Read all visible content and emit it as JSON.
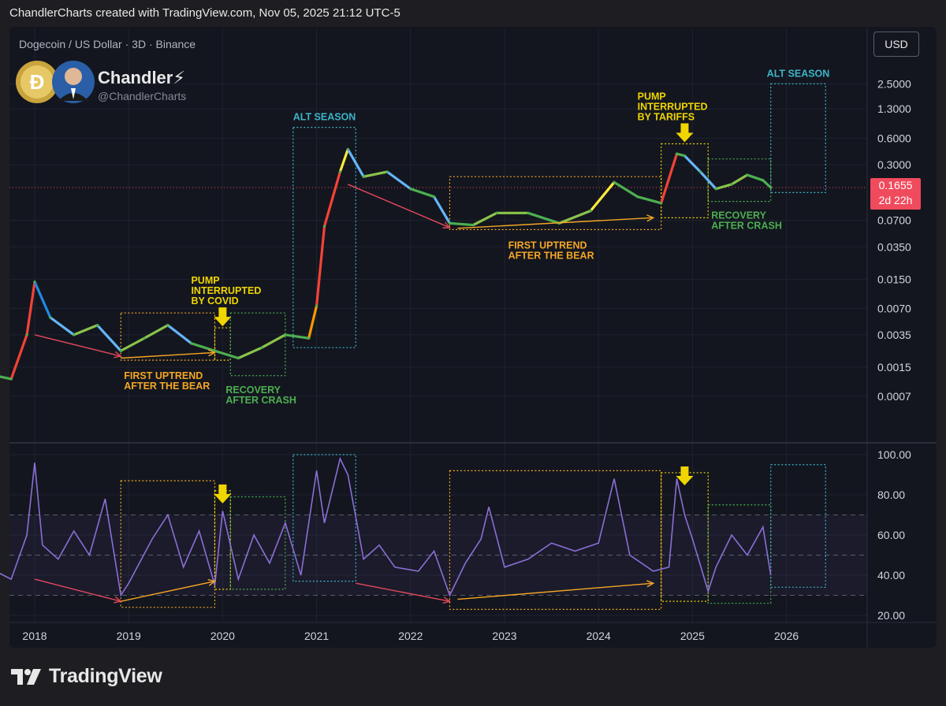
{
  "header": {
    "caption": "ChandlerCharts created with TradingView.com, Nov 05, 2025 21:12 UTC-5",
    "symbol": "Dogecoin / US Dollar · 3D · Binance",
    "author_name": "Chandler⚡",
    "author_handle": "@ChandlerCharts",
    "currency_button": "USD",
    "current_price": "0.1655",
    "countdown": "2d 22h"
  },
  "footer": {
    "brand": "TradingView"
  },
  "colors": {
    "background": "#13161f",
    "price_line": "#f04a5d",
    "rsi_line": "#8b6fd6",
    "alt_season": "#3cb4c8",
    "uptrend": "#f5a623",
    "pump": "#f0d500",
    "recovery": "#4caf50",
    "downtrend": "#e5485c"
  },
  "chart_data": [
    {
      "type": "line",
      "panel": "price",
      "scale": "log",
      "x_axis_labels": [
        "2018",
        "2019",
        "2020",
        "2021",
        "2022",
        "2023",
        "2024",
        "2025",
        "2026"
      ],
      "y_axis_labels": [
        "2.5000",
        "1.3000",
        "0.6000",
        "0.3000",
        "0.0700",
        "0.0350",
        "0.0150",
        "0.0070",
        "0.0035",
        "0.0015",
        "0.0007"
      ],
      "series": [
        {
          "x": [
            "2017-08",
            "2017-10",
            "2017-12",
            "2018-01",
            "2018-03",
            "2018-06",
            "2018-09",
            "2018-12",
            "2019-03",
            "2019-06",
            "2019-09",
            "2019-12",
            "2020-03",
            "2020-06",
            "2020-09",
            "2020-12",
            "2021-01",
            "2021-02",
            "2021-04",
            "2021-05",
            "2021-07",
            "2021-10",
            "2022-01",
            "2022-04",
            "2022-06",
            "2022-09",
            "2022-12",
            "2023-04",
            "2023-08",
            "2023-12",
            "2024-03",
            "2024-06",
            "2024-09",
            "2024-11",
            "2024-12",
            "2025-02",
            "2025-04",
            "2025-06",
            "2025-08",
            "2025-10",
            "2025-11"
          ],
          "values": [
            0.0012,
            0.0011,
            0.0035,
            0.014,
            0.0055,
            0.0035,
            0.0045,
            0.0023,
            0.0032,
            0.0045,
            0.0028,
            0.0023,
            0.0019,
            0.0025,
            0.0035,
            0.0032,
            0.0075,
            0.06,
            0.25,
            0.45,
            0.22,
            0.25,
            0.16,
            0.13,
            0.065,
            0.062,
            0.085,
            0.085,
            0.065,
            0.09,
            0.19,
            0.13,
            0.11,
            0.4,
            0.38,
            0.25,
            0.16,
            0.18,
            0.23,
            0.2,
            0.1655
          ]
        }
      ],
      "annotations": [
        {
          "label": "ALT SEASON",
          "kind": "alt_season",
          "x_start": "2020-10",
          "x_end": "2021-06",
          "y_low": 0.0025,
          "y_high": 0.8
        },
        {
          "label": "ALT SEASON",
          "kind": "alt_season",
          "x_start": "2025-11",
          "x_end": "2026-06",
          "y_low": 0.145,
          "y_high": 2.5
        },
        {
          "label": "FIRST UPTREND\nAFTER THE BEAR",
          "kind": "uptrend",
          "x_start": "2018-12",
          "x_end": "2019-12",
          "y_low": 0.0018,
          "y_high": 0.0062,
          "arrow": {
            "from": [
              "2018-12",
              0.0019
            ],
            "to": [
              "2019-12",
              0.0022
            ]
          }
        },
        {
          "label": "FIRST UPTREND\nAFTER THE BEAR",
          "kind": "uptrend",
          "x_start": "2022-06",
          "x_end": "2024-09",
          "y_low": 0.055,
          "y_high": 0.22,
          "arrow": {
            "from": [
              "2022-07",
              0.057
            ],
            "to": [
              "2024-08",
              0.075
            ]
          }
        },
        {
          "label": "PUMP\nINTERRUPTED\nBY COVID",
          "kind": "pump",
          "x_start": "2019-12",
          "x_end": "2020-02",
          "y_low": 0.0018,
          "y_high": 0.0042
        },
        {
          "label": "PUMP\nINTERRUPTED\nBY TARIFFS",
          "kind": "pump",
          "x_start": "2024-09",
          "x_end": "2025-03",
          "y_low": 0.075,
          "y_high": 0.52
        },
        {
          "label": "RECOVERY\nAFTER CRASH",
          "kind": "recovery",
          "x_start": "2020-02",
          "x_end": "2020-09",
          "y_low": 0.0012,
          "y_high": 0.0062
        },
        {
          "label": "RECOVERY\nAFTER CRASH",
          "kind": "recovery",
          "x_start": "2025-03",
          "x_end": "2025-11",
          "y_low": 0.115,
          "y_high": 0.35
        },
        {
          "label": "",
          "kind": "downtrend",
          "arrow": {
            "from": [
              "2018-01",
              0.0035
            ],
            "to": [
              "2018-12",
              0.002
            ]
          }
        },
        {
          "label": "",
          "kind": "downtrend",
          "arrow": {
            "from": [
              "2021-05",
              0.18
            ],
            "to": [
              "2022-06",
              0.058
            ]
          }
        }
      ]
    },
    {
      "type": "line",
      "panel": "rsi",
      "y_axis_labels": [
        "100.00",
        "80.00",
        "60.00",
        "40.00",
        "20.00"
      ],
      "ylim": [
        20,
        100
      ],
      "bands": [
        30,
        50,
        70
      ],
      "series": [
        {
          "x": [
            "2017-08",
            "2017-10",
            "2017-12",
            "2018-01",
            "2018-02",
            "2018-04",
            "2018-06",
            "2018-08",
            "2018-10",
            "2018-12",
            "2019-01",
            "2019-04",
            "2019-06",
            "2019-08",
            "2019-10",
            "2019-12",
            "2020-01",
            "2020-03",
            "2020-05",
            "2020-07",
            "2020-09",
            "2020-11",
            "2021-01",
            "2021-02",
            "2021-04",
            "2021-05",
            "2021-07",
            "2021-09",
            "2021-11",
            "2022-02",
            "2022-04",
            "2022-06",
            "2022-08",
            "2022-10",
            "2022-11",
            "2023-01",
            "2023-04",
            "2023-07",
            "2023-10",
            "2024-01",
            "2024-03",
            "2024-05",
            "2024-08",
            "2024-10",
            "2024-11",
            "2024-12",
            "2025-01",
            "2025-03",
            "2025-04",
            "2025-06",
            "2025-08",
            "2025-10",
            "2025-11"
          ],
          "values": [
            42,
            38,
            60,
            96,
            55,
            48,
            62,
            50,
            78,
            30,
            36,
            58,
            70,
            44,
            62,
            35,
            72,
            38,
            60,
            46,
            66,
            40,
            92,
            66,
            98,
            90,
            48,
            55,
            44,
            42,
            52,
            30,
            46,
            58,
            74,
            44,
            48,
            56,
            52,
            56,
            88,
            50,
            42,
            44,
            88,
            70,
            58,
            32,
            44,
            60,
            50,
            64,
            40
          ]
        }
      ],
      "annotations": [
        {
          "kind": "uptrend",
          "x_start": "2018-12",
          "x_end": "2019-12",
          "y_low": 24,
          "y_high": 87
        },
        {
          "kind": "pump",
          "x_start": "2019-12",
          "x_end": "2020-02",
          "y_low": 33,
          "y_high": 82
        },
        {
          "kind": "recovery",
          "x_start": "2020-02",
          "x_end": "2020-09",
          "y_low": 33,
          "y_high": 79
        },
        {
          "kind": "alt_season",
          "x_start": "2020-10",
          "x_end": "2021-06",
          "y_low": 37,
          "y_high": 100
        },
        {
          "kind": "uptrend",
          "x_start": "2022-06",
          "x_end": "2024-09",
          "y_low": 23,
          "y_high": 92
        },
        {
          "kind": "pump",
          "x_start": "2024-09",
          "x_end": "2025-03",
          "y_low": 27,
          "y_high": 91
        },
        {
          "kind": "recovery",
          "x_start": "2025-03",
          "x_end": "2025-11",
          "y_low": 26,
          "y_high": 75
        },
        {
          "kind": "alt_season",
          "x_start": "2025-11",
          "x_end": "2026-06",
          "y_low": 34,
          "y_high": 95
        }
      ]
    }
  ]
}
